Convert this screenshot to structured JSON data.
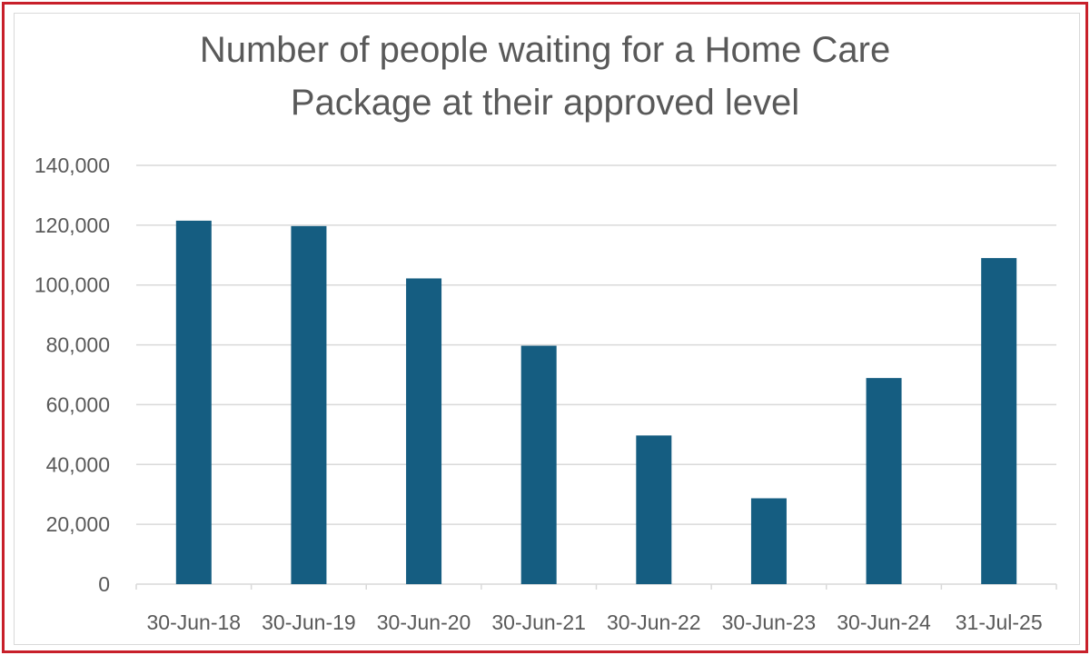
{
  "chart_data": {
    "type": "bar",
    "title_lines": [
      "Number of people waiting for a Home Care",
      "Package at their approved level"
    ],
    "categories": [
      "30-Jun-18",
      "30-Jun-19",
      "30-Jun-20",
      "30-Jun-21",
      "30-Jun-22",
      "30-Jun-23",
      "30-Jun-24",
      "31-Jul-25"
    ],
    "values": [
      121500,
      119700,
      102200,
      79700,
      49700,
      28700,
      68900,
      109000
    ],
    "ylim": [
      0,
      140000
    ],
    "yticks": [
      "0",
      "20,000",
      "40,000",
      "60,000",
      "80,000",
      "100,000",
      "120,000",
      "140,000"
    ],
    "grid": true,
    "legend": "none",
    "colors": {
      "bar": "#155d81",
      "grid": "#d9d9d9",
      "frame": "#c8202a",
      "text": "#595959"
    }
  }
}
